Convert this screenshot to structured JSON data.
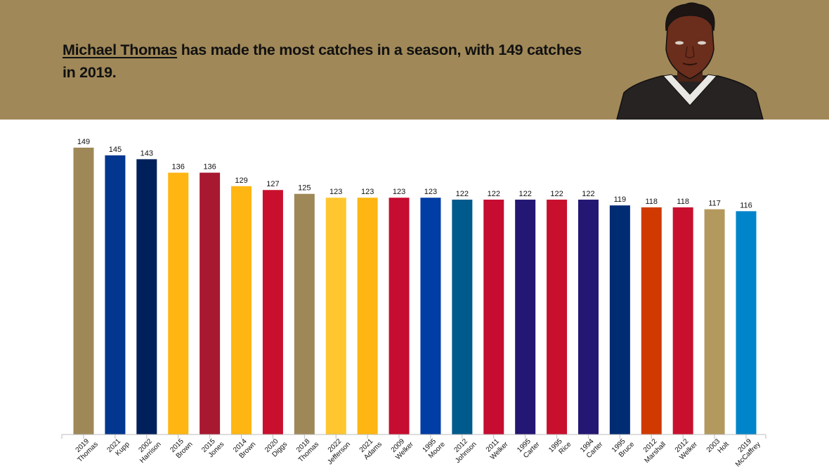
{
  "header": {
    "player_link": "Michael Thomas",
    "headline_rest": " has made the most catches in a season, with 149 catches in 2019.",
    "portrait_icon": "player-portrait",
    "background_color": "#a08858"
  },
  "chart_data": {
    "type": "bar",
    "title": "",
    "xlabel": "",
    "ylabel": "",
    "ylim": [
      0,
      149
    ],
    "grid": false,
    "categories": [
      {
        "year": "2019",
        "name": "Thomas"
      },
      {
        "year": "2021",
        "name": "Kupp"
      },
      {
        "year": "2002",
        "name": "Harrison"
      },
      {
        "year": "2015",
        "name": "Brown"
      },
      {
        "year": "2015",
        "name": "Jones"
      },
      {
        "year": "2014",
        "name": "Brown"
      },
      {
        "year": "2020",
        "name": "Diggs"
      },
      {
        "year": "2018",
        "name": "Thomas"
      },
      {
        "year": "2022",
        "name": "Jefferson"
      },
      {
        "year": "2021",
        "name": "Adams"
      },
      {
        "year": "2009",
        "name": "Welker"
      },
      {
        "year": "1995",
        "name": "Moore"
      },
      {
        "year": "2012",
        "name": "Johnson"
      },
      {
        "year": "2011",
        "name": "Welker"
      },
      {
        "year": "1995",
        "name": "Carter"
      },
      {
        "year": "1995",
        "name": "Rice"
      },
      {
        "year": "1994",
        "name": "Carter"
      },
      {
        "year": "1995",
        "name": "Bruce"
      },
      {
        "year": "2012",
        "name": "Marshall"
      },
      {
        "year": "2012",
        "name": "Welker"
      },
      {
        "year": "2003",
        "name": "Holt"
      },
      {
        "year": "2019",
        "name": "McCaffrey"
      }
    ],
    "values": [
      149,
      145,
      143,
      136,
      136,
      129,
      127,
      125,
      123,
      123,
      123,
      123,
      122,
      122,
      122,
      122,
      122,
      119,
      118,
      118,
      117,
      116
    ],
    "colors": [
      "#9f8858",
      "#03378f",
      "#00205b",
      "#ffb612",
      "#a71930",
      "#ffb612",
      "#c8102e",
      "#9f8858",
      "#ffc62f",
      "#ffb612",
      "#c60c30",
      "#003da5",
      "#005a8b",
      "#c60c30",
      "#241773",
      "#c8102e",
      "#241773",
      "#002c73",
      "#d03a00",
      "#c8102e",
      "#b3995d",
      "#0085ca"
    ]
  }
}
